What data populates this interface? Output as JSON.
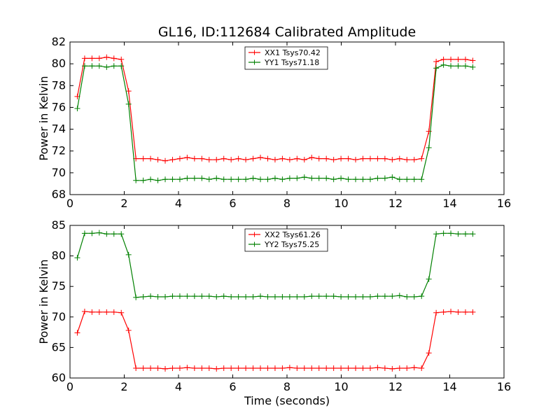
{
  "title": "GL16, ID:112684 Calibrated Amplitude",
  "chart_data": [
    {
      "type": "line",
      "title": "GL16, ID:112684 Calibrated Amplitude",
      "xlabel": "",
      "ylabel": "Power in Kelvin",
      "xlim": [
        0,
        16
      ],
      "ylim": [
        68,
        82
      ],
      "xticks": [
        0,
        2,
        4,
        6,
        8,
        10,
        12,
        14,
        16
      ],
      "yticks": [
        68,
        70,
        72,
        74,
        76,
        78,
        80,
        82
      ],
      "grid": false,
      "legend_position": "top-center",
      "x": [
        0.27,
        0.54,
        0.81,
        1.08,
        1.35,
        1.62,
        1.89,
        2.16,
        2.43,
        2.7,
        2.97,
        3.24,
        3.51,
        3.78,
        4.05,
        4.32,
        4.59,
        4.86,
        5.13,
        5.4,
        5.67,
        5.94,
        6.21,
        6.48,
        6.75,
        7.02,
        7.29,
        7.56,
        7.83,
        8.1,
        8.37,
        8.64,
        8.91,
        9.18,
        9.45,
        9.72,
        9.99,
        10.26,
        10.53,
        10.8,
        11.07,
        11.34,
        11.61,
        11.88,
        12.15,
        12.42,
        12.69,
        12.96,
        13.23,
        13.5,
        13.77,
        14.04,
        14.31,
        14.58,
        14.85
      ],
      "series": [
        {
          "name": "XX1 Tsys70.42",
          "color": "#ff0000",
          "values": [
            77.0,
            80.5,
            80.5,
            80.5,
            80.6,
            80.5,
            80.4,
            77.5,
            71.3,
            71.3,
            71.3,
            71.2,
            71.1,
            71.2,
            71.3,
            71.4,
            71.3,
            71.3,
            71.2,
            71.2,
            71.3,
            71.2,
            71.3,
            71.2,
            71.3,
            71.4,
            71.3,
            71.2,
            71.3,
            71.2,
            71.3,
            71.2,
            71.4,
            71.3,
            71.3,
            71.2,
            71.3,
            71.3,
            71.2,
            71.3,
            71.3,
            71.3,
            71.3,
            71.2,
            71.3,
            71.2,
            71.2,
            71.3,
            73.8,
            80.2,
            80.4,
            80.4,
            80.4,
            80.4,
            80.3
          ]
        },
        {
          "name": "YY1 Tsys71.18",
          "color": "#008000",
          "values": [
            75.9,
            79.8,
            79.8,
            79.8,
            79.7,
            79.8,
            79.8,
            76.3,
            69.3,
            69.3,
            69.4,
            69.3,
            69.4,
            69.4,
            69.4,
            69.5,
            69.5,
            69.5,
            69.4,
            69.5,
            69.4,
            69.4,
            69.4,
            69.4,
            69.5,
            69.4,
            69.4,
            69.5,
            69.4,
            69.5,
            69.5,
            69.6,
            69.5,
            69.5,
            69.5,
            69.4,
            69.5,
            69.4,
            69.4,
            69.4,
            69.4,
            69.5,
            69.5,
            69.6,
            69.4,
            69.4,
            69.4,
            69.4,
            72.3,
            79.6,
            79.9,
            79.8,
            79.8,
            79.8,
            79.7
          ]
        }
      ]
    },
    {
      "type": "line",
      "title": "",
      "xlabel": "Time (seconds)",
      "ylabel": "Power in Kelvin",
      "xlim": [
        0,
        16
      ],
      "ylim": [
        60,
        85
      ],
      "xticks": [
        0,
        2,
        4,
        6,
        8,
        10,
        12,
        14,
        16
      ],
      "yticks": [
        60,
        65,
        70,
        75,
        80,
        85
      ],
      "grid": false,
      "legend_position": "top-center",
      "x": [
        0.27,
        0.54,
        0.81,
        1.08,
        1.35,
        1.62,
        1.89,
        2.16,
        2.43,
        2.7,
        2.97,
        3.24,
        3.51,
        3.78,
        4.05,
        4.32,
        4.59,
        4.86,
        5.13,
        5.4,
        5.67,
        5.94,
        6.21,
        6.48,
        6.75,
        7.02,
        7.29,
        7.56,
        7.83,
        8.1,
        8.37,
        8.64,
        8.91,
        9.18,
        9.45,
        9.72,
        9.99,
        10.26,
        10.53,
        10.8,
        11.07,
        11.34,
        11.61,
        11.88,
        12.15,
        12.42,
        12.69,
        12.96,
        13.23,
        13.5,
        13.77,
        14.04,
        14.31,
        14.58,
        14.85
      ],
      "series": [
        {
          "name": "XX2 Tsys61.26",
          "color": "#ff0000",
          "values": [
            67.4,
            70.9,
            70.8,
            70.8,
            70.8,
            70.8,
            70.7,
            67.8,
            61.6,
            61.6,
            61.6,
            61.6,
            61.5,
            61.6,
            61.6,
            61.7,
            61.6,
            61.6,
            61.6,
            61.5,
            61.6,
            61.6,
            61.6,
            61.6,
            61.6,
            61.6,
            61.6,
            61.6,
            61.6,
            61.7,
            61.6,
            61.6,
            61.6,
            61.6,
            61.6,
            61.6,
            61.6,
            61.6,
            61.6,
            61.6,
            61.6,
            61.7,
            61.6,
            61.5,
            61.6,
            61.6,
            61.7,
            61.6,
            64.1,
            70.7,
            70.8,
            70.9,
            70.8,
            70.8,
            70.8
          ]
        },
        {
          "name": "YY2 Tsys75.25",
          "color": "#008000",
          "values": [
            79.7,
            83.7,
            83.7,
            83.8,
            83.6,
            83.6,
            83.6,
            80.2,
            73.2,
            73.3,
            73.4,
            73.3,
            73.3,
            73.4,
            73.4,
            73.4,
            73.4,
            73.4,
            73.4,
            73.3,
            73.4,
            73.3,
            73.3,
            73.3,
            73.3,
            73.4,
            73.3,
            73.3,
            73.3,
            73.3,
            73.3,
            73.3,
            73.4,
            73.4,
            73.4,
            73.4,
            73.3,
            73.3,
            73.3,
            73.3,
            73.3,
            73.4,
            73.4,
            73.4,
            73.5,
            73.3,
            73.3,
            73.4,
            76.2,
            83.6,
            83.7,
            83.7,
            83.6,
            83.6,
            83.6
          ]
        }
      ]
    }
  ]
}
